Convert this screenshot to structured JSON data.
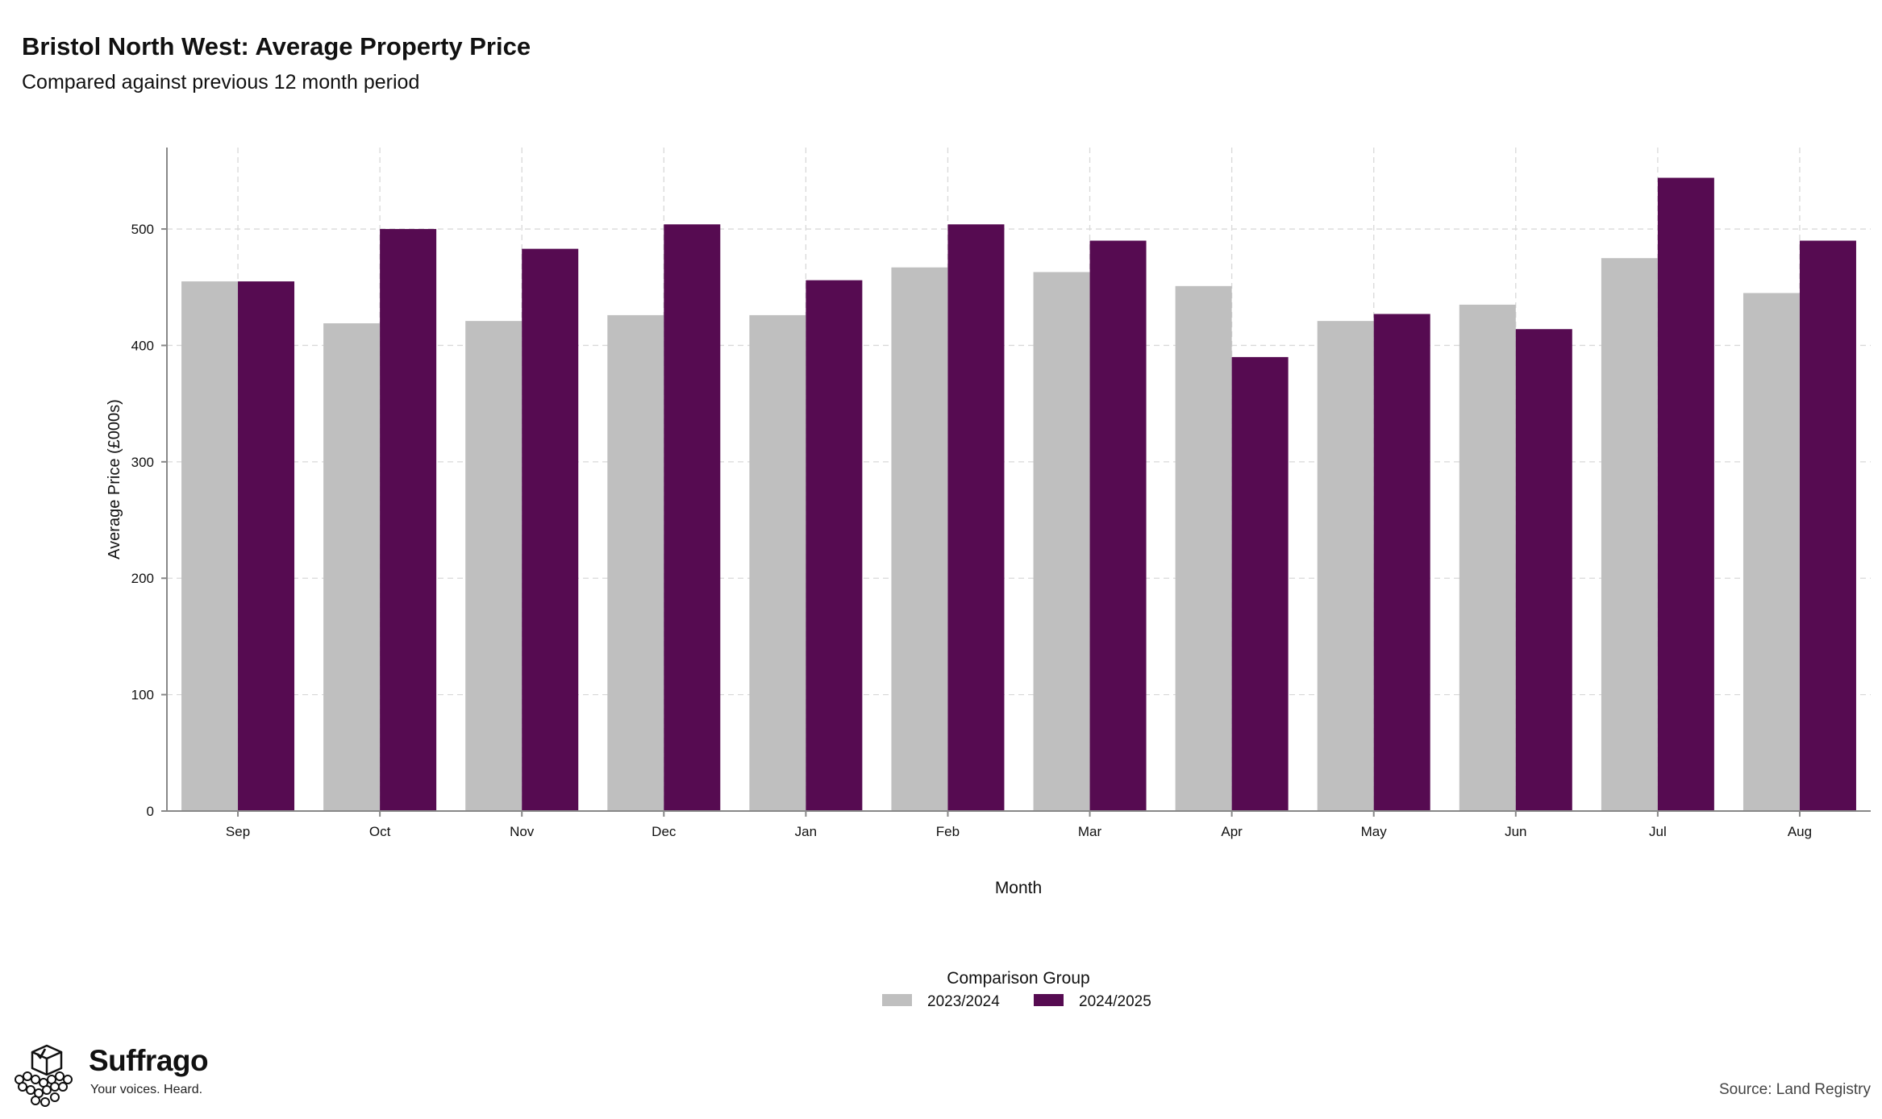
{
  "header": {
    "title": "Bristol North West: Average Property Price",
    "subtitle": "Compared against previous 12 month period"
  },
  "chart_data": {
    "type": "bar",
    "xlabel": "Month",
    "ylabel": "Average Price (£000s)",
    "categories": [
      "Sep",
      "Oct",
      "Nov",
      "Dec",
      "Jan",
      "Feb",
      "Mar",
      "Apr",
      "May",
      "Jun",
      "Jul",
      "Aug"
    ],
    "series": [
      {
        "name": "2023/2024",
        "color": "#bfbfbf",
        "values": [
          455,
          419,
          421,
          426,
          426,
          467,
          463,
          451,
          421,
          435,
          475,
          445
        ]
      },
      {
        "name": "2024/2025",
        "color": "#560b51",
        "values": [
          455,
          500,
          483,
          504,
          456,
          504,
          490,
          390,
          427,
          414,
          544,
          490
        ]
      }
    ],
    "ylim": [
      0,
      570
    ],
    "yticks": [
      0,
      100,
      200,
      300,
      400,
      500
    ],
    "grid": true,
    "legend": {
      "title": "Comparison Group",
      "position": "bottom"
    }
  },
  "branding": {
    "name": "Suffrago",
    "tagline": "Your voices. Heard.",
    "logo_icon": "ballot-box-icon"
  },
  "footer": {
    "source": "Source: Land Registry"
  }
}
